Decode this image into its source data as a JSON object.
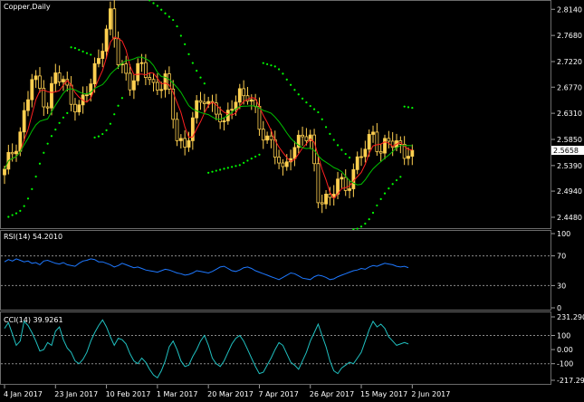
{
  "chart_data": [
    {
      "type": "candlestick",
      "title": "Copper,Daily",
      "price_ticks": [
        "2.8140",
        "2.7680",
        "2.7220",
        "2.6770",
        "2.6310",
        "2.5850",
        "2.5390",
        "2.4940",
        "2.4480"
      ],
      "price_tick_values": [
        2.814,
        2.768,
        2.722,
        2.677,
        2.631,
        2.585,
        2.539,
        2.494,
        2.448
      ],
      "last_price": "2.5658",
      "last_price_value": 2.5658,
      "ylim": [
        2.432,
        2.824
      ],
      "x_labels": [
        "4 Jan 2017",
        "23 Jan 2017",
        "10 Feb 2017",
        "1 Mar 2017",
        "20 Mar 2017",
        "7 Apr 2017",
        "26 Apr 2017",
        "15 May 2017",
        "2 Jun 2017"
      ],
      "x_label_index": [
        0,
        13,
        26,
        39,
        52,
        65,
        78,
        91,
        104
      ],
      "colors": {
        "bull": "#ffd050",
        "bear": "#ffd050",
        "ma_fast": "#ff2020",
        "ma_slow": "#00c000",
        "sar": "#00ff00"
      },
      "anchors": [
        [
          0,
          2.525
        ],
        [
          4,
          2.6
        ],
        [
          7,
          2.69
        ],
        [
          11,
          2.65
        ],
        [
          13,
          2.7
        ],
        [
          16,
          2.67
        ],
        [
          19,
          2.64
        ],
        [
          22,
          2.68
        ],
        [
          25,
          2.76
        ],
        [
          27,
          2.8
        ],
        [
          29,
          2.72
        ],
        [
          32,
          2.69
        ],
        [
          35,
          2.71
        ],
        [
          38,
          2.68
        ],
        [
          41,
          2.69
        ],
        [
          44,
          2.59
        ],
        [
          46,
          2.575
        ],
        [
          48,
          2.62
        ],
        [
          51,
          2.66
        ],
        [
          54,
          2.64
        ],
        [
          56,
          2.6
        ],
        [
          58,
          2.65
        ],
        [
          60,
          2.67
        ],
        [
          62,
          2.66
        ],
        [
          65,
          2.61
        ],
        [
          68,
          2.58
        ],
        [
          71,
          2.52
        ],
        [
          73,
          2.57
        ],
        [
          76,
          2.59
        ],
        [
          78,
          2.58
        ],
        [
          80,
          2.49
        ],
        [
          83,
          2.475
        ],
        [
          85,
          2.51
        ],
        [
          87,
          2.505
        ],
        [
          90,
          2.54
        ],
        [
          92,
          2.57
        ],
        [
          94,
          2.6
        ],
        [
          96,
          2.565
        ],
        [
          98,
          2.575
        ],
        [
          100,
          2.58
        ],
        [
          102,
          2.5658
        ]
      ]
    },
    {
      "type": "line",
      "title": "RSI(14) 54.2010",
      "ticks": [
        "100",
        "70",
        "30",
        "0"
      ],
      "tick_values": [
        100,
        70,
        30,
        0
      ],
      "levels": [
        70,
        30
      ],
      "ylim": [
        0,
        100
      ],
      "series": [
        {
          "color": "#1e78ff",
          "values": [
            62,
            65,
            63,
            66,
            64,
            62,
            63,
            60,
            61,
            58,
            63,
            64,
            62,
            60,
            59,
            61,
            58,
            57,
            56,
            60,
            63,
            64,
            66,
            65,
            62,
            62,
            60,
            58,
            55,
            57,
            60,
            58,
            56,
            54,
            55,
            53,
            51,
            50,
            49,
            48,
            50,
            52,
            51,
            49,
            47,
            46,
            44,
            45,
            47,
            50,
            49,
            48,
            47,
            49,
            52,
            55,
            56,
            53,
            50,
            49,
            51,
            54,
            55,
            53,
            50,
            48,
            46,
            44,
            42,
            40,
            38,
            41,
            44,
            47,
            46,
            43,
            40,
            39,
            38,
            42,
            44,
            43,
            41,
            38,
            39,
            42,
            44,
            46,
            48,
            50,
            51,
            53,
            52,
            55,
            57,
            56,
            58,
            60,
            59,
            58,
            56,
            55,
            56,
            54.2
          ]
        }
      ]
    },
    {
      "type": "line",
      "title": "CCI(14) 39.9261",
      "ticks": [
        "231.2905",
        "100",
        "0.00",
        "-100",
        "-217.292"
      ],
      "tick_values": [
        231.2905,
        100,
        0,
        -100,
        -217.292
      ],
      "levels": [
        100,
        -100
      ],
      "ylim": [
        -217.292,
        231.2905
      ],
      "series": [
        {
          "color": "#20c0c0",
          "values": [
            150,
            190,
            110,
            30,
            60,
            200,
            170,
            120,
            60,
            -10,
            0,
            50,
            30,
            130,
            160,
            70,
            10,
            -20,
            -80,
            -100,
            -70,
            -20,
            60,
            120,
            170,
            210,
            160,
            90,
            30,
            80,
            70,
            40,
            -30,
            -80,
            -100,
            -60,
            -90,
            -140,
            -180,
            -200,
            -150,
            -80,
            20,
            60,
            0,
            -80,
            -120,
            -110,
            -50,
            0,
            60,
            100,
            30,
            -60,
            -100,
            -120,
            -80,
            -20,
            40,
            80,
            100,
            60,
            0,
            -60,
            -120,
            -170,
            -160,
            -110,
            -60,
            0,
            50,
            30,
            -30,
            -90,
            -110,
            -140,
            -80,
            -20,
            60,
            120,
            180,
            100,
            20,
            -80,
            -150,
            -170,
            -130,
            -110,
            -90,
            -100,
            -60,
            -20,
            60,
            140,
            200,
            160,
            180,
            150,
            90,
            60,
            30,
            40,
            50,
            39.93
          ]
        }
      ]
    }
  ]
}
